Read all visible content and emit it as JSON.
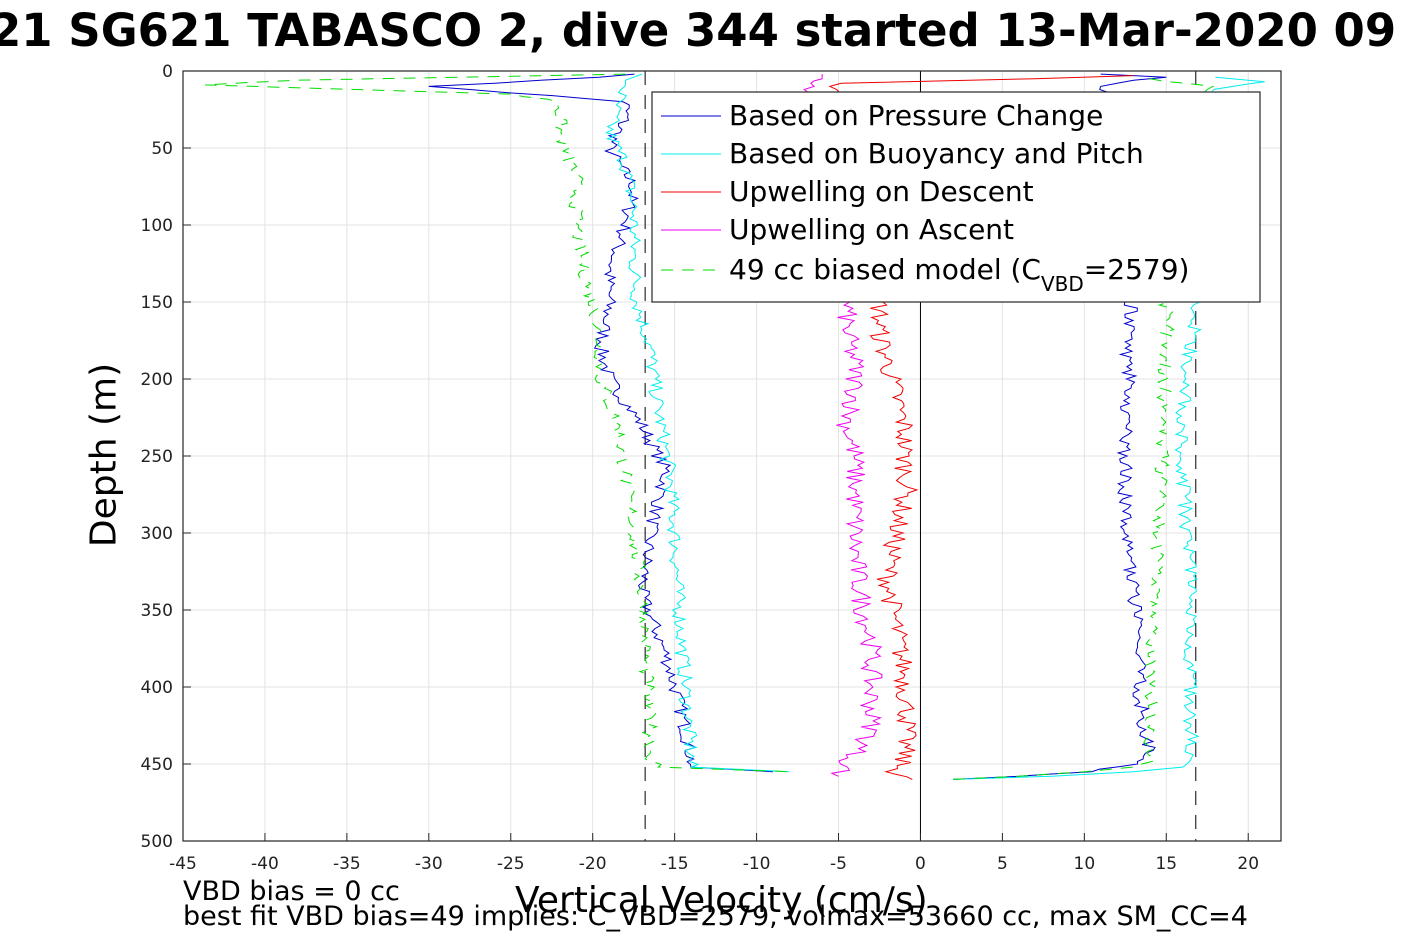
{
  "chart_data": {
    "type": "line",
    "title": "21 SG621 TABASCO 2, dive 344 started 13-Mar-2020 09",
    "xlabel": "Vertical Velocity (cm/s)",
    "ylabel": "Depth (m)",
    "xlim": [
      -45,
      22
    ],
    "ylim": [
      0,
      500
    ],
    "y_reversed": true,
    "grid": true,
    "legend_position": "top-right",
    "xticks": [
      "-45",
      "-40",
      "-35",
      "-30",
      "-25",
      "-20",
      "-15",
      "-10",
      "-5",
      "0",
      "5",
      "10",
      "15",
      "20"
    ],
    "yticks": [
      "0",
      "50",
      "100",
      "150",
      "200",
      "250",
      "300",
      "350",
      "400",
      "450",
      "500"
    ],
    "reference_lines": {
      "dashed_x": [
        -16.8,
        16.8
      ],
      "solid_x": [
        0
      ]
    },
    "series": [
      {
        "name": "Based on Pressure Change",
        "color": "#0000cc",
        "style": "solid",
        "descent": {
          "depth": [
            2,
            8,
            10,
            14,
            20,
            30,
            50,
            75,
            100,
            130,
            150,
            180,
            200,
            230,
            260,
            300,
            340,
            380,
            420,
            445,
            452,
            455
          ],
          "velocity": [
            -17,
            -26,
            -30,
            -25,
            -18,
            -18,
            -19,
            -17.5,
            -18,
            -19,
            -19,
            -19.5,
            -19,
            -17,
            -15.5,
            -16.5,
            -17,
            -15.5,
            -14.5,
            -14,
            -14,
            -9
          ]
        },
        "ascent": {
          "depth": [
            460,
            458,
            455,
            450,
            445,
            420,
            380,
            340,
            300,
            260,
            230,
            200,
            180,
            160,
            120,
            90,
            60,
            30,
            10,
            6,
            4,
            2
          ],
          "velocity": [
            2,
            6,
            10,
            13,
            14,
            13.5,
            13.3,
            13,
            12.5,
            12.5,
            12.5,
            12.8,
            12.5,
            12.8,
            13,
            13,
            12.5,
            12,
            11,
            13,
            15,
            11
          ]
        }
      },
      {
        "name": "Based on Buoyancy and Pitch",
        "color": "#00eeee",
        "style": "solid",
        "descent": {
          "depth": [
            2,
            6,
            10,
            20,
            40,
            60,
            90,
            120,
            150,
            180,
            220,
            260,
            300,
            340,
            380,
            420,
            445,
            452,
            455
          ],
          "velocity": [
            -17,
            -18,
            -18,
            -18.5,
            -19,
            -18,
            -17.5,
            -17.5,
            -17.3,
            -16.5,
            -16,
            -15.3,
            -15,
            -14.8,
            -14.5,
            -14.2,
            -14,
            -14,
            -8
          ]
        },
        "ascent": {
          "depth": [
            460,
            458,
            455,
            452,
            448,
            420,
            380,
            340,
            300,
            260,
            220,
            180,
            150,
            100,
            60,
            30,
            12,
            7,
            4
          ],
          "velocity": [
            2,
            8,
            13,
            16,
            16.5,
            16.5,
            16.5,
            16.5,
            16.3,
            16,
            16,
            16.5,
            17,
            17,
            17,
            17.2,
            17.5,
            21,
            18
          ]
        }
      },
      {
        "name": "Upwelling on Descent",
        "color": "#ee0000",
        "style": "solid",
        "depth": [
          3,
          5,
          8,
          150,
          170,
          190,
          210,
          230,
          250,
          270,
          300,
          330,
          360,
          390,
          420,
          445,
          455,
          460
        ],
        "velocity": [
          13,
          7,
          -5,
          -2.5,
          -2.5,
          -2,
          -1.5,
          -1,
          -1,
          -0.8,
          -1.5,
          -2,
          -1.5,
          -1,
          -0.8,
          -1,
          -1.5,
          -0.5
        ]
      },
      {
        "name": "Upwelling on Ascent",
        "color": "#ee00ee",
        "style": "solid",
        "depth": [
          2,
          5,
          8,
          150,
          170,
          190,
          210,
          230,
          250,
          270,
          290,
          310,
          330,
          350,
          370,
          390,
          410,
          430,
          450,
          458
        ],
        "velocity": [
          -6,
          -6,
          -7,
          -4.5,
          -4.5,
          -4,
          -4,
          -4.5,
          -4,
          -4,
          -4,
          -4,
          -3.8,
          -3.5,
          -3,
          -3,
          -3,
          -3,
          -4.5,
          -5
        ]
      },
      {
        "name": "49 cc biased model (C_VBD=2579)",
        "color": "#00dd00",
        "style": "dashed",
        "descent": {
          "depth": [
            2,
            6,
            9,
            15,
            20,
            40,
            70,
            100,
            130,
            150,
            180,
            200,
            230,
            260,
            300,
            340,
            380,
            420,
            445,
            452,
            455
          ],
          "velocity": [
            -18,
            -38,
            -44,
            -25,
            -22,
            -22,
            -21,
            -21,
            -20.5,
            -20,
            -19.5,
            -19.5,
            -18.5,
            -18,
            -17.5,
            -17,
            -16.8,
            -16.5,
            -16.5,
            -16,
            -8
          ]
        },
        "ascent": {
          "depth": [
            460,
            458,
            455,
            452,
            448,
            420,
            380,
            340,
            300,
            260,
            220,
            180,
            150,
            100,
            60,
            30,
            10,
            5
          ],
          "velocity": [
            2,
            6,
            10,
            13,
            14,
            14,
            14,
            14.3,
            14.5,
            14.7,
            14.8,
            15,
            15,
            15.5,
            16,
            16.5,
            18,
            14
          ]
        }
      }
    ]
  },
  "legend": {
    "series1": "Based on Pressure Change",
    "series2": "Based on Buoyancy and Pitch",
    "series3": "Upwelling on Descent",
    "series4": "Upwelling on Ascent",
    "series5_prefix": "49 cc biased model (C",
    "series5_sub": "VBD",
    "series5_suffix": "=2579)"
  },
  "footer": {
    "line1": "VBD bias = 0 cc",
    "line2": "best fit VBD bias=49 implies: C_VBD=2579, volmax=53660 cc, max SM_CC=4"
  }
}
